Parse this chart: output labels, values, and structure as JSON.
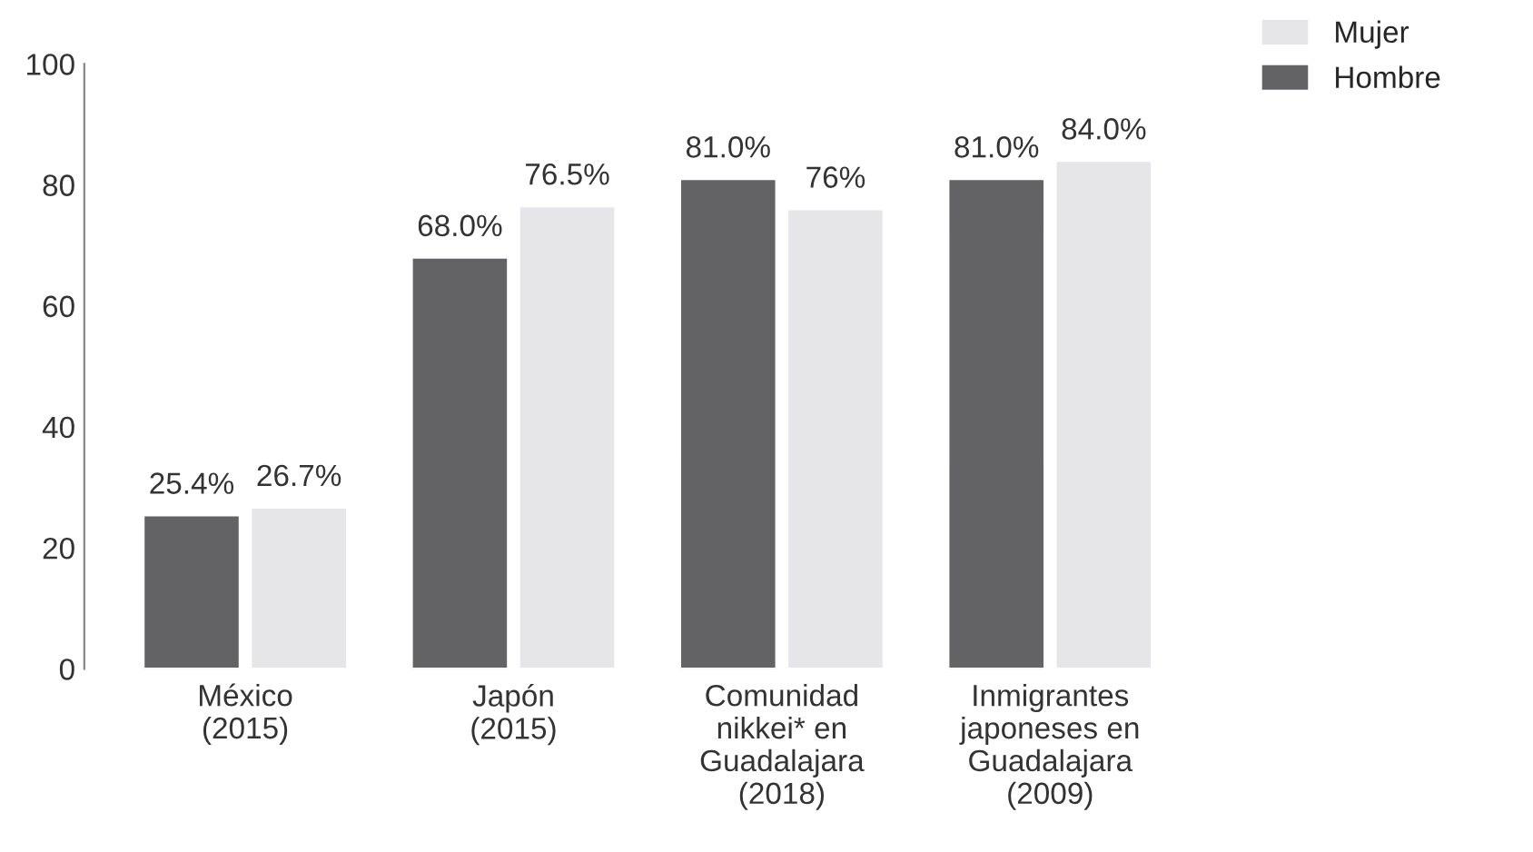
{
  "chart_data": {
    "type": "bar",
    "categories": [
      "México\n(2015)",
      "Japón\n(2015)",
      "Comunidad\nnikkei* en\nGuadalajara\n(2018)",
      "Inmigrantes\njaponeses en\nGuadalajara\n(2009)"
    ],
    "series": [
      {
        "name": "Hombre",
        "color": "#636366",
        "values": [
          25.4,
          68.0,
          81.0,
          81.0
        ],
        "value_labels": [
          "25.4%",
          "68.0%",
          "81.0%",
          "81.0%"
        ]
      },
      {
        "name": "Mujer",
        "color": "#e6e6e8",
        "values": [
          26.7,
          76.5,
          76.0,
          84.0
        ],
        "value_labels": [
          "26.7%",
          "76.5%",
          "76%",
          "84.0%"
        ]
      }
    ],
    "ylim": [
      0,
      100
    ],
    "yticks": [
      0,
      20,
      40,
      60,
      80,
      100
    ],
    "grid": false,
    "legend": "top right"
  }
}
